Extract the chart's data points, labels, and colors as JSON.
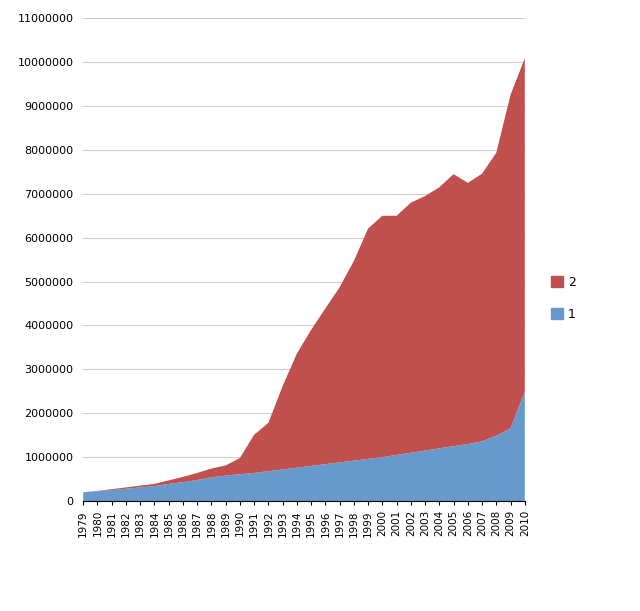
{
  "years": [
    1979,
    1980,
    1981,
    1982,
    1983,
    1984,
    1985,
    1986,
    1987,
    1988,
    1989,
    1990,
    1991,
    1992,
    1993,
    1994,
    1995,
    1996,
    1997,
    1998,
    1999,
    2000,
    2001,
    2002,
    2003,
    2004,
    2005,
    2006,
    2007,
    2008,
    2009,
    2010
  ],
  "permanent": [
    200000,
    220000,
    250000,
    280000,
    310000,
    340000,
    390000,
    430000,
    480000,
    540000,
    580000,
    610000,
    640000,
    680000,
    720000,
    760000,
    800000,
    840000,
    880000,
    920000,
    960000,
    1000000,
    1050000,
    1100000,
    1150000,
    1200000,
    1250000,
    1300000,
    1360000,
    1490000,
    1660000,
    2490000
  ],
  "non_permanent": [
    0,
    10000,
    20000,
    30000,
    40000,
    50000,
    80000,
    120000,
    160000,
    200000,
    230000,
    370000,
    870000,
    1100000,
    1900000,
    2600000,
    3100000,
    3550000,
    3990000,
    4550000,
    5250000,
    5500000,
    5450000,
    5700000,
    5800000,
    5950000,
    6200000,
    5950000,
    6100000,
    6450000,
    7600000,
    7600000
  ],
  "color_permanent": "#6699CC",
  "color_non_permanent": "#C0504D",
  "ylim": [
    0,
    11000000
  ],
  "ytick_step": 1000000,
  "background_color": "#ffffff"
}
